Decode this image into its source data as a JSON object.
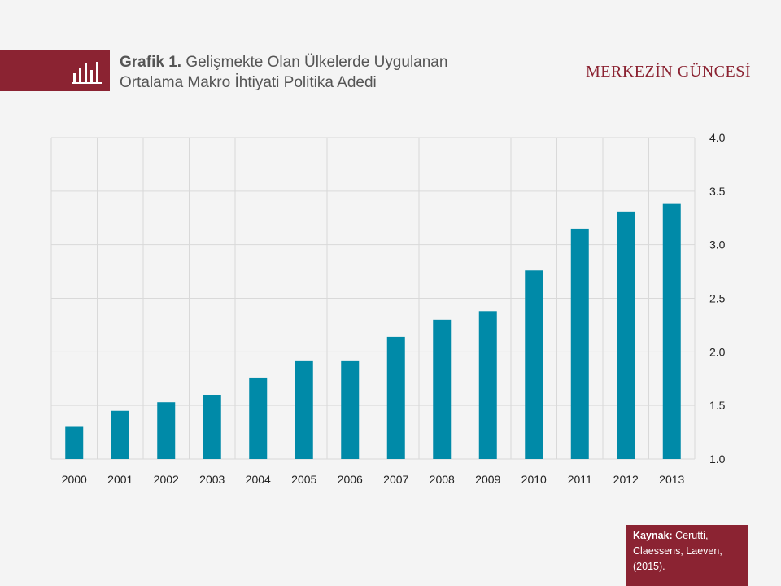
{
  "header": {
    "title_bold": "Grafik 1.",
    "title_line1": "Gelişmekte Olan Ülkelerde Uygulanan",
    "title_line2": "Ortalama Makro İhtiyati Politika Adedi",
    "brand": "MERKEZİN GÜNCESİ",
    "icon": "bar-chart-icon",
    "band_color": "#8b2332"
  },
  "source": {
    "label": "Kaynak:",
    "text": "Cerutti, Claessens, Laeven, (2015)."
  },
  "chart_data": {
    "type": "bar",
    "categories": [
      "2000",
      "2001",
      "2002",
      "2003",
      "2004",
      "2005",
      "2006",
      "2007",
      "2008",
      "2009",
      "2010",
      "2011",
      "2012",
      "2013"
    ],
    "values": [
      1.3,
      1.45,
      1.53,
      1.6,
      1.76,
      1.92,
      1.92,
      2.14,
      2.3,
      2.38,
      2.76,
      3.15,
      3.31,
      3.38
    ],
    "ylim": [
      1.0,
      4.0
    ],
    "yticks": [
      "1.0",
      "1.5",
      "2.0",
      "2.5",
      "3.0",
      "3.5",
      "4.0"
    ],
    "yaxis_side": "right",
    "grid": true,
    "bar_color": "#008aa8",
    "grid_color": "#d9d9d9"
  }
}
